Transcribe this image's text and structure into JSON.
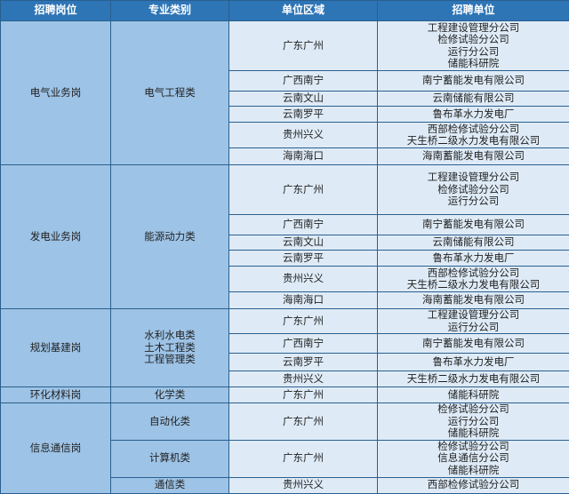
{
  "header": [
    "招聘岗位",
    "专业类别",
    "单位区域",
    "招聘单位"
  ],
  "sections": [
    {
      "position": "电气业务岗",
      "majors": [
        {
          "name": [
            "电气工程类"
          ],
          "rows": [
            {
              "region": "广东广州",
              "units": [
                "工程建设管理分公司",
                "检修试验分公司",
                "运行分公司",
                "储能科研院"
              ]
            },
            {
              "region": "广西南宁",
              "units": [
                "南宁蓄能发电有限公司"
              ]
            },
            {
              "region": "云南文山",
              "units": [
                "云南储能有限公司"
              ]
            },
            {
              "region": "云南罗平",
              "units": [
                "鲁布革水力发电厂"
              ]
            },
            {
              "region": "贵州兴义",
              "units": [
                "西部检修试验分公司",
                "天生桥二级水力发电有限公司"
              ]
            },
            {
              "region": "海南海口",
              "units": [
                "海南蓄能发电有限公司"
              ]
            }
          ]
        }
      ]
    },
    {
      "position": "发电业务岗",
      "majors": [
        {
          "name": [
            "能源动力类"
          ],
          "rows": [
            {
              "region": "广东广州",
              "units": [
                "工程建设管理分公司",
                "检修试验分公司",
                "运行分公司"
              ]
            },
            {
              "region": "广西南宁",
              "units": [
                "南宁蓄能发电有限公司"
              ]
            },
            {
              "region": "云南文山",
              "units": [
                "云南储能有限公司"
              ]
            },
            {
              "region": "云南罗平",
              "units": [
                "鲁布革水力发电厂"
              ]
            },
            {
              "region": "贵州兴义",
              "units": [
                "西部检修试验分公司",
                "天生桥二级水力发电有限公司"
              ]
            },
            {
              "region": "海南海口",
              "units": [
                "海南蓄能发电有限公司"
              ]
            }
          ]
        }
      ]
    },
    {
      "position": "规划基建岗",
      "majors": [
        {
          "name": [
            "水利水电类",
            "土木工程类",
            "工程管理类"
          ],
          "rows": [
            {
              "region": "广东广州",
              "units": [
                "工程建设管理分公司",
                "运行分公司"
              ]
            },
            {
              "region": "广西南宁",
              "units": [
                "南宁蓄能发电有限公司"
              ]
            },
            {
              "region": "云南罗平",
              "units": [
                "鲁布革水力发电厂"
              ]
            },
            {
              "region": "贵州兴义",
              "units": [
                "天生桥二级水力发电有限公司"
              ]
            }
          ]
        }
      ]
    },
    {
      "position": "环化材料岗",
      "majors": [
        {
          "name": [
            "化学类"
          ],
          "rows": [
            {
              "region": "广东广州",
              "units": [
                "储能科研院"
              ]
            }
          ]
        }
      ]
    },
    {
      "position": "信息通信岗",
      "majors": [
        {
          "name": [
            "自动化类"
          ],
          "rows": [
            {
              "region": "广东广州",
              "units": [
                "检修试验分公司",
                "运行分公司",
                "储能科研院"
              ]
            }
          ]
        },
        {
          "name": [
            "计算机类"
          ],
          "rows": [
            {
              "region": "广东广州",
              "units": [
                "检修试验分公司",
                "信息通信分公司",
                "储能科研院"
              ]
            }
          ]
        },
        {
          "name": [
            "通信类"
          ],
          "rows": [
            {
              "region": "贵州兴义",
              "units": [
                "西部检修试验分公司"
              ]
            }
          ]
        }
      ]
    }
  ]
}
